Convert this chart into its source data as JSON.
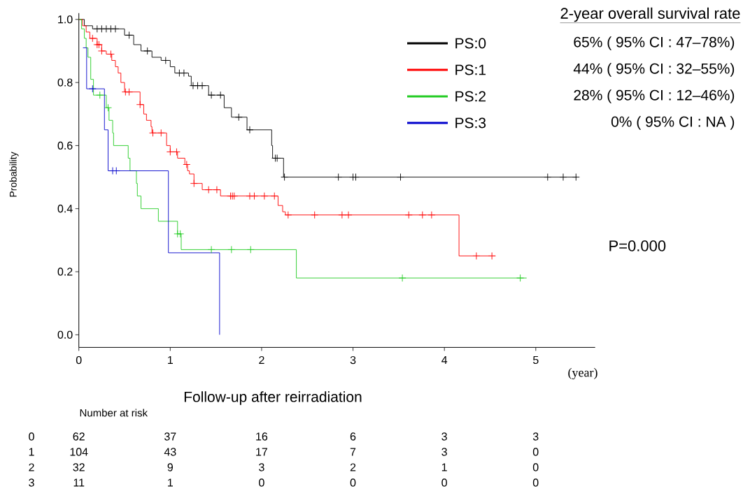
{
  "chart_data": {
    "type": "step",
    "xlabel": "Follow-up after reirradiation",
    "ylabel": "Probability",
    "legend_title": "2-year overall survival rate",
    "legend": "top right",
    "xlim": [
      0,
      5.65
    ],
    "ylim": [
      -0.04,
      1.02
    ],
    "xticks": [
      0,
      1,
      2,
      3,
      4,
      5
    ],
    "yticks": [
      {
        "value": 0,
        "label": "0.0"
      },
      {
        "value": 0.2,
        "label": "0.2"
      },
      {
        "value": 0.4,
        "label": "0.4"
      },
      {
        "value": 0.6,
        "label": "0.6"
      },
      {
        "value": 0.8,
        "label": "0.8"
      },
      {
        "value": 1,
        "label": "1.0"
      }
    ],
    "series": [
      {
        "name": "PS:0",
        "color": "#000000",
        "x": [
          0,
          0.06,
          0.15,
          0.5,
          0.6,
          0.68,
          0.8,
          0.9,
          1.0,
          1.05,
          1.2,
          1.23,
          1.42,
          1.59,
          1.67,
          1.84,
          2.11,
          2.12,
          2.24,
          5.45
        ],
        "values": [
          1,
          0.98,
          0.97,
          0.95,
          0.92,
          0.9,
          0.88,
          0.87,
          0.85,
          0.83,
          0.82,
          0.79,
          0.76,
          0.72,
          0.69,
          0.65,
          0.6,
          0.56,
          0.5,
          0.5
        ]
      },
      {
        "name": "PS:1",
        "color": "#ff0000",
        "x": [
          0,
          0.04,
          0.08,
          0.12,
          0.2,
          0.25,
          0.3,
          0.36,
          0.4,
          0.43,
          0.46,
          0.5,
          0.67,
          0.71,
          0.74,
          0.79,
          0.8,
          0.96,
          1.0,
          1.08,
          1.16,
          1.19,
          1.21,
          1.26,
          1.35,
          1.55,
          2.18,
          2.23,
          2.26,
          4.16,
          4.56
        ],
        "values": [
          1,
          0.98,
          0.96,
          0.94,
          0.92,
          0.9,
          0.89,
          0.87,
          0.85,
          0.83,
          0.8,
          0.77,
          0.73,
          0.7,
          0.68,
          0.66,
          0.64,
          0.6,
          0.58,
          0.56,
          0.54,
          0.52,
          0.51,
          0.48,
          0.46,
          0.44,
          0.41,
          0.39,
          0.38,
          0.25,
          0.25
        ]
      },
      {
        "name": "PS:2",
        "color": "#22cc22",
        "x": [
          0,
          0.03,
          0.06,
          0.08,
          0.1,
          0.13,
          0.16,
          0.3,
          0.33,
          0.37,
          0.38,
          0.54,
          0.56,
          0.63,
          0.64,
          0.68,
          0.87,
          1.08,
          1.12,
          2.38,
          4.9
        ],
        "values": [
          1,
          0.97,
          0.94,
          0.91,
          0.88,
          0.81,
          0.76,
          0.72,
          0.68,
          0.64,
          0.6,
          0.56,
          0.52,
          0.48,
          0.44,
          0.4,
          0.36,
          0.32,
          0.27,
          0.18,
          0.18
        ]
      },
      {
        "name": "PS:3",
        "color": "#0000cc",
        "x": [
          0.045,
          0.085,
          0.28,
          0.32,
          0.98,
          1.54
        ],
        "values": [
          0.91,
          0.78,
          0.65,
          0.52,
          0.26,
          0
        ]
      },
      {
        "type": "scatter",
        "marker": "cross",
        "color": "#000000",
        "x": [
          0.2,
          0.25,
          0.3,
          0.35,
          0.4,
          0.55,
          0.75,
          0.95,
          1.1,
          1.15,
          1.25,
          1.3,
          1.35,
          1.45,
          1.55,
          1.75,
          1.87,
          2.15,
          2.17,
          2.25,
          2.84,
          3.0,
          3.03,
          3.52,
          5.13,
          5.3,
          5.44
        ],
        "values": [
          0.97,
          0.97,
          0.97,
          0.97,
          0.97,
          0.95,
          0.9,
          0.87,
          0.83,
          0.83,
          0.79,
          0.79,
          0.79,
          0.76,
          0.76,
          0.69,
          0.65,
          0.56,
          0.56,
          0.5,
          0.5,
          0.5,
          0.5,
          0.5,
          0.5,
          0.5,
          0.5
        ]
      },
      {
        "type": "scatter",
        "marker": "cross",
        "color": "#ff0000",
        "x": [
          0.15,
          0.2,
          0.22,
          0.25,
          0.35,
          0.51,
          0.55,
          0.67,
          0.81,
          0.9,
          1.0,
          1.07,
          1.18,
          1.26,
          1.42,
          1.51,
          1.66,
          1.68,
          1.7,
          1.87,
          1.92,
          2.03,
          2.14,
          2.29,
          2.58,
          2.88,
          2.95,
          3.61,
          3.76,
          3.86,
          4.35,
          4.52
        ],
        "values": [
          0.94,
          0.92,
          0.92,
          0.9,
          0.89,
          0.77,
          0.77,
          0.73,
          0.64,
          0.64,
          0.58,
          0.58,
          0.54,
          0.48,
          0.46,
          0.46,
          0.44,
          0.44,
          0.44,
          0.44,
          0.44,
          0.44,
          0.44,
          0.38,
          0.38,
          0.38,
          0.38,
          0.38,
          0.38,
          0.38,
          0.25,
          0.25
        ]
      },
      {
        "type": "scatter",
        "marker": "cross",
        "color": "#22cc22",
        "x": [
          0.23,
          0.32,
          1.08,
          1.11,
          1.45,
          1.67,
          1.88,
          3.54,
          4.83
        ],
        "values": [
          0.76,
          0.72,
          0.32,
          0.32,
          0.27,
          0.27,
          0.27,
          0.18,
          0.18
        ]
      },
      {
        "type": "scatter",
        "marker": "cross",
        "color": "#0000cc",
        "x": [
          0.15,
          0.37,
          0.41
        ],
        "values": [
          0.78,
          0.52,
          0.52
        ]
      }
    ],
    "annotations": [
      "(year)",
      "P=0.000",
      "65% ( 95% CI : 47–78%)",
      "44% ( 95% CI : 32–55%)",
      "28% ( 95% CI : 12–46%)",
      "0% ( 95% CI : NA )",
      "Number at risk",
      "0",
      "62",
      "37",
      "16",
      "6",
      "3",
      "3",
      "1",
      "104",
      "43",
      "17",
      "7",
      "3",
      "0",
      "2",
      "32",
      "9",
      "3",
      "2",
      "1",
      "0",
      "3",
      "11",
      "1",
      "0",
      "0",
      "0",
      "0"
    ]
  }
}
